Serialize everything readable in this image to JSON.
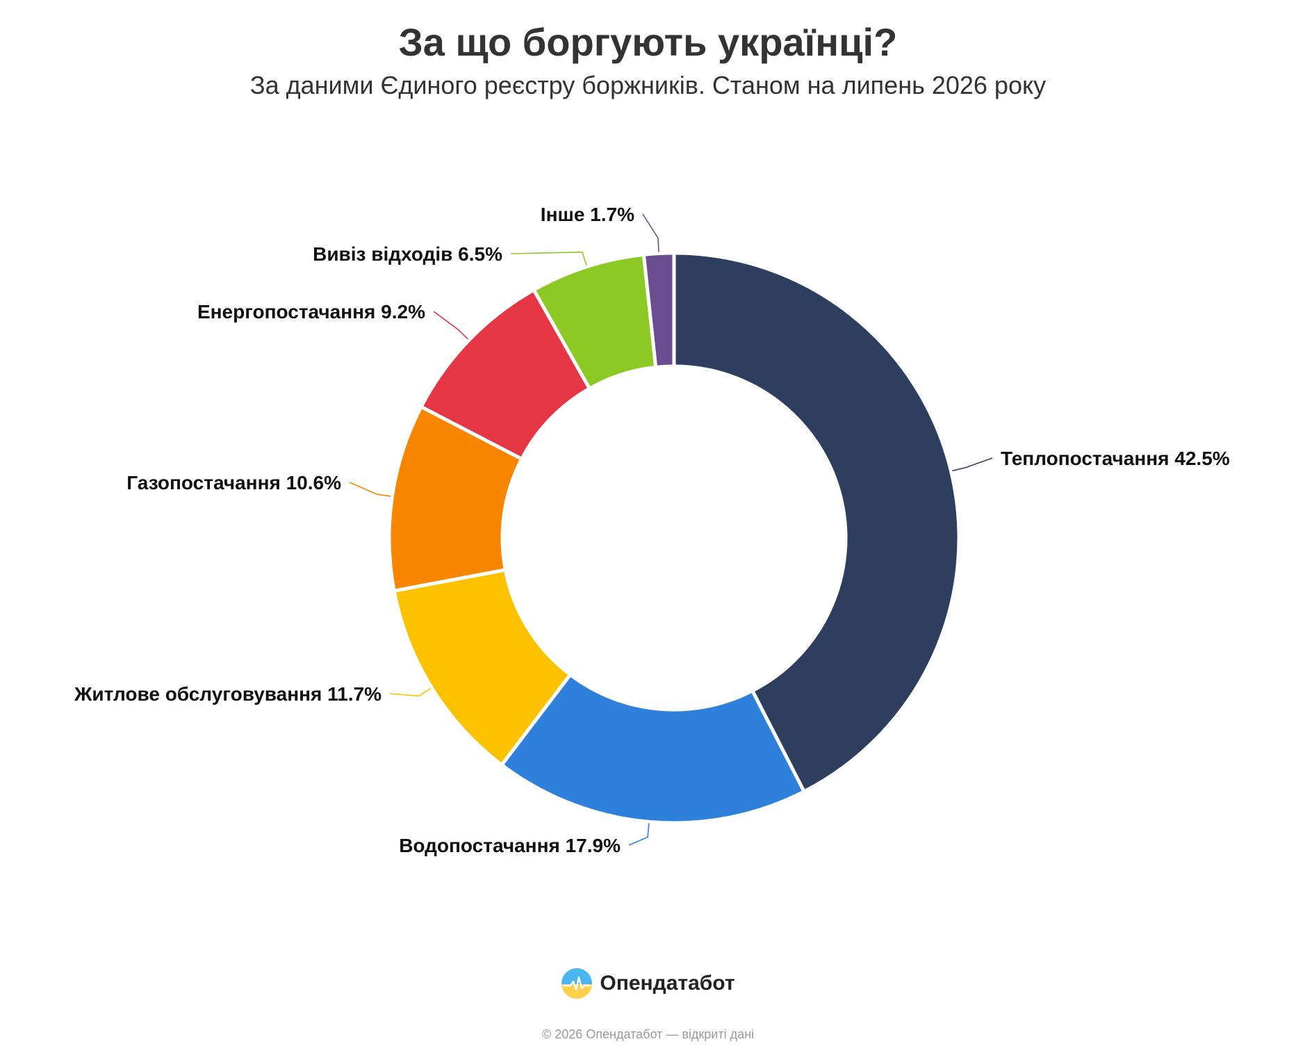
{
  "chart_data": {
    "type": "pie",
    "variant": "donut",
    "title": "За що боргують українці?",
    "subtitle": "За даними Єдиного реєстру боржників. Станом на липень 2026 року",
    "slices": [
      {
        "label": "Теплопостачання",
        "value": 42.5,
        "value_label": "42.5%",
        "color": "#2e3e5e"
      },
      {
        "label": "Водопостачання",
        "value": 17.9,
        "value_label": "17.9%",
        "color": "#2e80db"
      },
      {
        "label": "Житлове обслуговування",
        "value": 11.7,
        "value_label": "11.7%",
        "color": "#fcc200"
      },
      {
        "label": "Газопостачання",
        "value": 10.6,
        "value_label": "10.6%",
        "color": "#f98600"
      },
      {
        "label": "Енергопостачання",
        "value": 9.2,
        "value_label": "9.2%",
        "color": "#e53645"
      },
      {
        "label": "Вивіз відходів",
        "value": 6.5,
        "value_label": "6.5%",
        "color": "#8cc925"
      },
      {
        "label": "Інше",
        "value": 1.7,
        "value_label": "1.7%",
        "color": "#6a4e91"
      }
    ],
    "legend": "none",
    "labels": "outside-with-leader-lines"
  },
  "brand": {
    "name": "Опендатабот",
    "icon": "opendatabot-logo-icon"
  },
  "footer": {
    "note": "© 2026 Опендатабот — відкриті дані"
  }
}
